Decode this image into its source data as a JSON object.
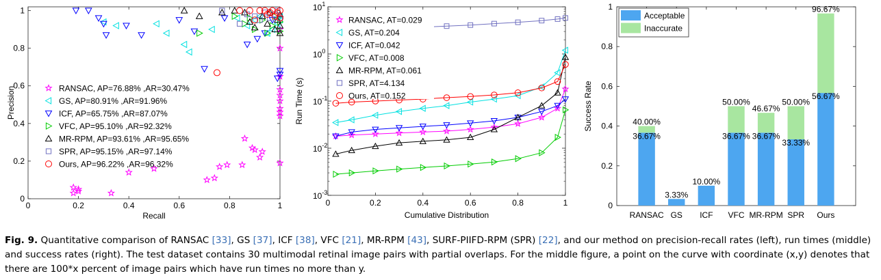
{
  "colors": {
    "ransac": "#ff00ff",
    "gs": "#00e0e0",
    "icf": "#0000ff",
    "vfc": "#00cc00",
    "mrrpm": "#000000",
    "spr": "#7070c0",
    "ours": "#ff0000",
    "acceptable": "#4da6f0",
    "inaccurate": "#a8e6a0"
  },
  "chart_data": [
    {
      "type": "scatter",
      "xlabel": "Recall",
      "ylabel": "Precision",
      "xlim": [
        0,
        1
      ],
      "ylim": [
        0,
        1.02
      ],
      "xticks": [
        "0",
        "0.2",
        "0.4",
        "0.6",
        "0.8",
        "1"
      ],
      "yticks": [
        "0",
        "0.2",
        "0.4",
        "0.6",
        "0.8",
        "1"
      ],
      "legend_position": "bottom-left",
      "series": [
        {
          "key": "ransac",
          "name": "RANSAC, AP=76.88% ,AR=30.47%",
          "marker": "star",
          "points": [
            [
              0.18,
              0.06
            ],
            [
              0.2,
              0.05
            ],
            [
              0.18,
              0.03
            ],
            [
              0.2,
              0.04
            ],
            [
              0.33,
              0.03
            ],
            [
              0.4,
              0.14
            ],
            [
              0.5,
              0.16
            ],
            [
              0.71,
              0.1
            ],
            [
              0.74,
              0.11
            ],
            [
              0.76,
              0.17
            ],
            [
              0.79,
              0.18
            ],
            [
              0.85,
              0.18
            ],
            [
              0.86,
              0.32
            ],
            [
              0.89,
              0.27
            ],
            [
              0.9,
              0.26
            ],
            [
              0.92,
              0.22
            ],
            [
              0.93,
              0.25
            ],
            [
              1.0,
              0.19
            ],
            [
              1.0,
              0.44
            ],
            [
              1.0,
              0.46
            ],
            [
              1.0,
              0.48
            ],
            [
              1.0,
              0.52
            ],
            [
              1.0,
              0.55
            ],
            [
              1.0,
              0.58
            ],
            [
              1.0,
              0.65
            ],
            [
              1.0,
              0.8
            ],
            [
              1.0,
              0.9
            ]
          ]
        },
        {
          "key": "gs",
          "name": "GS,  AP=80.91% ,AR=91.96%",
          "marker": "left",
          "points": [
            [
              0.3,
              0.94
            ],
            [
              0.35,
              0.92
            ],
            [
              0.51,
              0.93
            ],
            [
              0.55,
              0.88
            ],
            [
              0.62,
              0.82
            ],
            [
              0.64,
              0.78
            ],
            [
              0.73,
              0.9
            ],
            [
              0.83,
              0.96
            ],
            [
              0.87,
              0.92
            ],
            [
              0.9,
              0.95
            ],
            [
              0.92,
              0.97
            ],
            [
              0.95,
              0.88
            ],
            [
              0.97,
              0.9
            ],
            [
              0.99,
              0.93
            ],
            [
              1.0,
              0.95
            ],
            [
              1.0,
              0.97
            ]
          ]
        },
        {
          "key": "icf",
          "name": "ICF, AP=65.75% ,AR=87.07%",
          "marker": "down",
          "points": [
            [
              0.19,
              1.0
            ],
            [
              0.24,
              1.0
            ],
            [
              0.28,
              0.96
            ],
            [
              0.3,
              0.93
            ],
            [
              0.31,
              0.87
            ],
            [
              0.39,
              0.92
            ],
            [
              0.45,
              0.87
            ],
            [
              0.6,
              0.95
            ],
            [
              0.66,
              0.89
            ],
            [
              0.7,
              0.69
            ],
            [
              0.78,
              0.96
            ],
            [
              0.87,
              0.82
            ],
            [
              0.91,
              0.85
            ],
            [
              0.94,
              0.88
            ],
            [
              0.97,
              0.95
            ],
            [
              0.99,
              0.64
            ],
            [
              1.0,
              0.66
            ],
            [
              1.0,
              0.68
            ]
          ]
        },
        {
          "key": "vfc",
          "name": "VFC, AP=95.10% ,AR=92.32%",
          "marker": "right",
          "points": [
            [
              0.68,
              0.88
            ],
            [
              0.82,
              0.97
            ],
            [
              0.86,
              0.93
            ],
            [
              0.88,
              0.96
            ],
            [
              0.9,
              0.9
            ],
            [
              0.93,
              0.95
            ],
            [
              0.95,
              0.88
            ],
            [
              0.97,
              0.92
            ],
            [
              0.98,
              0.97
            ],
            [
              1.0,
              0.89
            ],
            [
              1.0,
              0.94
            ]
          ]
        },
        {
          "key": "mrrpm",
          "name": "MR-RPM, AP=93.61% ,AR=95.65%",
          "marker": "up",
          "points": [
            [
              0.62,
              1.0
            ],
            [
              0.68,
              0.97
            ],
            [
              0.77,
              0.99
            ],
            [
              0.82,
              1.0
            ],
            [
              0.86,
              0.99
            ],
            [
              0.88,
              0.94
            ],
            [
              0.9,
              0.91
            ],
            [
              0.93,
              0.97
            ],
            [
              0.95,
              0.93
            ],
            [
              0.96,
              0.99
            ],
            [
              0.98,
              0.9
            ],
            [
              0.99,
              0.95
            ],
            [
              1.0,
              0.88
            ],
            [
              1.0,
              0.92
            ],
            [
              1.0,
              0.98
            ]
          ]
        },
        {
          "key": "spr",
          "name": "SPR, AP=95.15% ,AR=97.14%",
          "marker": "square",
          "points": [
            [
              0.77,
              1.0
            ],
            [
              0.84,
              0.93
            ],
            [
              0.87,
              0.98
            ],
            [
              0.9,
              0.97
            ],
            [
              0.92,
              0.95
            ],
            [
              0.94,
              0.99
            ],
            [
              0.96,
              0.96
            ],
            [
              0.98,
              0.98
            ],
            [
              0.99,
              1.0
            ],
            [
              1.0,
              0.96
            ]
          ]
        },
        {
          "key": "ours",
          "name": "Ours, AP=96.22% ,AR=96.32%",
          "marker": "circle",
          "points": [
            [
              0.75,
              0.67
            ],
            [
              0.84,
              1.0
            ],
            [
              0.88,
              1.0
            ],
            [
              0.9,
              0.95
            ],
            [
              0.92,
              1.0
            ],
            [
              0.94,
              1.0
            ],
            [
              0.95,
              0.98
            ],
            [
              0.96,
              0.99
            ],
            [
              0.97,
              1.0
            ],
            [
              0.98,
              0.97
            ],
            [
              0.99,
              0.99
            ],
            [
              1.0,
              0.96
            ],
            [
              1.0,
              1.0
            ]
          ]
        }
      ]
    },
    {
      "type": "line",
      "scale_y": "log",
      "xlabel": "Cumulative Distribution",
      "ylabel": "Run Time (s)",
      "xlim": [
        0,
        1
      ],
      "ylim": [
        0.001,
        10
      ],
      "xticks": [
        "0",
        "0.2",
        "0.4",
        "0.6",
        "0.8",
        "1"
      ],
      "yticks": [
        {
          "base": "10",
          "exp": "-3",
          "value": 0.001
        },
        {
          "base": "10",
          "exp": "-2",
          "value": 0.01
        },
        {
          "base": "10",
          "exp": "-1",
          "value": 0.1
        },
        {
          "base": "10",
          "exp": "0",
          "value": 1
        },
        {
          "base": "10",
          "exp": "1",
          "value": 10
        }
      ],
      "legend_position": "top-left",
      "series": [
        {
          "key": "ransac",
          "name": "RANSAC, AT=0.029",
          "marker": "star",
          "points": [
            [
              0.033,
              0.018
            ],
            [
              0.1,
              0.019
            ],
            [
              0.2,
              0.02
            ],
            [
              0.3,
              0.021
            ],
            [
              0.4,
              0.022
            ],
            [
              0.5,
              0.023
            ],
            [
              0.6,
              0.025
            ],
            [
              0.7,
              0.028
            ],
            [
              0.8,
              0.033
            ],
            [
              0.9,
              0.045
            ],
            [
              0.967,
              0.07
            ],
            [
              1.0,
              0.18
            ]
          ]
        },
        {
          "key": "gs",
          "name": "GS, AT=0.204",
          "marker": "left",
          "points": [
            [
              0.033,
              0.035
            ],
            [
              0.1,
              0.04
            ],
            [
              0.2,
              0.05
            ],
            [
              0.3,
              0.06
            ],
            [
              0.4,
              0.07
            ],
            [
              0.5,
              0.08
            ],
            [
              0.6,
              0.095
            ],
            [
              0.7,
              0.11
            ],
            [
              0.8,
              0.13
            ],
            [
              0.9,
              0.2
            ],
            [
              0.967,
              0.4
            ],
            [
              1.0,
              1.2
            ]
          ]
        },
        {
          "key": "icf",
          "name": "ICF, AT=0.042",
          "marker": "down",
          "points": [
            [
              0.033,
              0.018
            ],
            [
              0.1,
              0.022
            ],
            [
              0.2,
              0.025
            ],
            [
              0.3,
              0.027
            ],
            [
              0.4,
              0.029
            ],
            [
              0.5,
              0.031
            ],
            [
              0.6,
              0.034
            ],
            [
              0.7,
              0.038
            ],
            [
              0.8,
              0.045
            ],
            [
              0.9,
              0.06
            ],
            [
              0.967,
              0.08
            ],
            [
              1.0,
              0.11
            ]
          ]
        },
        {
          "key": "vfc",
          "name": "VFC, AT=0.008",
          "marker": "right",
          "points": [
            [
              0.033,
              0.0028
            ],
            [
              0.1,
              0.003
            ],
            [
              0.2,
              0.0033
            ],
            [
              0.3,
              0.0036
            ],
            [
              0.4,
              0.0039
            ],
            [
              0.5,
              0.0042
            ],
            [
              0.6,
              0.0046
            ],
            [
              0.7,
              0.0051
            ],
            [
              0.8,
              0.006
            ],
            [
              0.9,
              0.008
            ],
            [
              0.967,
              0.017
            ],
            [
              1.0,
              0.065
            ]
          ]
        },
        {
          "key": "mrrpm",
          "name": "MR-RPM, AT=0.061",
          "marker": "up",
          "points": [
            [
              0.033,
              0.0075
            ],
            [
              0.1,
              0.009
            ],
            [
              0.2,
              0.011
            ],
            [
              0.3,
              0.013
            ],
            [
              0.4,
              0.014
            ],
            [
              0.5,
              0.015
            ],
            [
              0.6,
              0.017
            ],
            [
              0.7,
              0.025
            ],
            [
              0.8,
              0.045
            ],
            [
              0.9,
              0.08
            ],
            [
              0.967,
              0.15
            ],
            [
              1.0,
              0.85
            ]
          ]
        },
        {
          "key": "spr",
          "name": "SPR, AT=4.134",
          "marker": "square",
          "points": [
            [
              0.033,
              2.3
            ],
            [
              0.1,
              3.0
            ],
            [
              0.2,
              3.3
            ],
            [
              0.3,
              3.5
            ],
            [
              0.4,
              3.7
            ],
            [
              0.5,
              3.9
            ],
            [
              0.6,
              4.1
            ],
            [
              0.7,
              4.4
            ],
            [
              0.8,
              4.7
            ],
            [
              0.9,
              5.1
            ],
            [
              0.967,
              5.5
            ],
            [
              1.0,
              5.8
            ]
          ]
        },
        {
          "key": "ours",
          "name": "Ours, AT=0.152",
          "marker": "circle",
          "points": [
            [
              0.033,
              0.09
            ],
            [
              0.1,
              0.095
            ],
            [
              0.2,
              0.1
            ],
            [
              0.3,
              0.105
            ],
            [
              0.4,
              0.11
            ],
            [
              0.5,
              0.118
            ],
            [
              0.6,
              0.125
            ],
            [
              0.7,
              0.135
            ],
            [
              0.8,
              0.15
            ],
            [
              0.9,
              0.19
            ],
            [
              0.967,
              0.26
            ],
            [
              1.0,
              0.6
            ]
          ]
        }
      ]
    },
    {
      "type": "bar",
      "stacked": true,
      "ylabel": "Success Rate",
      "xlabel": "",
      "ylim": [
        0,
        1
      ],
      "yticks": [
        "0",
        "0.2",
        "0.4",
        "0.6",
        "0.8",
        "1"
      ],
      "categories": [
        "RANSAC",
        "GS",
        "ICF",
        "VFC",
        "MR-RPM",
        "SPR",
        "Ours"
      ],
      "legend_position": "top-left",
      "series": [
        {
          "key": "acceptable",
          "name": "Acceptable",
          "values": [
            0.3667,
            0.0333,
            0.1,
            0.3667,
            0.3667,
            0.3333,
            0.5667
          ]
        },
        {
          "key": "inaccurate",
          "name": "Inaccurate",
          "values": [
            0.0333,
            0.0,
            0.0,
            0.1333,
            0.1,
            0.1667,
            0.4
          ]
        }
      ],
      "bar_labels": {
        "acceptable": [
          "36.67%",
          "3.33%",
          "10.00%",
          "36.67%",
          "36.67%",
          "33.33%",
          "56.67%"
        ],
        "total": [
          "40.00%",
          "",
          "",
          "50.00%",
          "46.67%",
          "50.00%",
          "96.67%"
        ]
      }
    }
  ],
  "caption": {
    "label": "Fig. 9.",
    "parts": [
      {
        "t": " Quantitative comparison of RANSAC "
      },
      {
        "t": "[33]",
        "ref": true
      },
      {
        "t": ", GS "
      },
      {
        "t": "[37]",
        "ref": true
      },
      {
        "t": ", ICF "
      },
      {
        "t": "[38]",
        "ref": true
      },
      {
        "t": ", VFC "
      },
      {
        "t": "[21]",
        "ref": true
      },
      {
        "t": ", MR-RPM "
      },
      {
        "t": "[43]",
        "ref": true
      },
      {
        "t": ", SURF-PIIFD-RPM (SPR) "
      },
      {
        "t": "[22]",
        "ref": true
      },
      {
        "t": ", and our method on precision-recall rates (left), run times (middle) and success rates (right). The test dataset contains 30 multimodal retinal image pairs with partial overlaps. For the middle figure, a point on the curve with coordinate (x,y) denotes that there are 100*x percent of image pairs which have run times no more than y."
      }
    ]
  }
}
